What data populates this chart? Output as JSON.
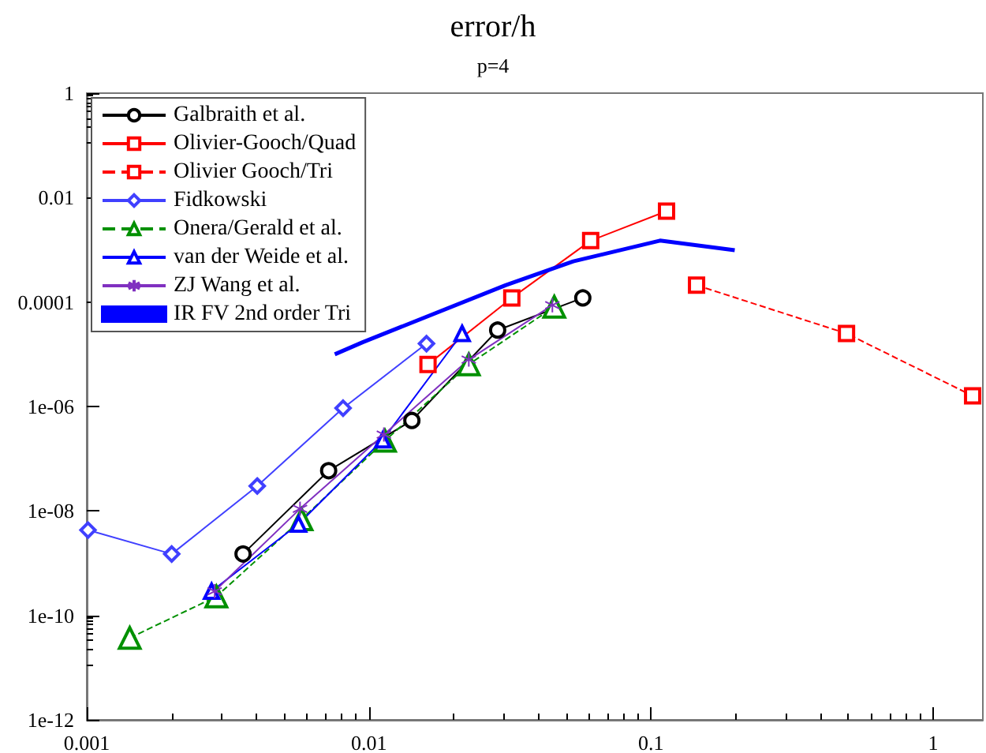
{
  "chart_data": {
    "type": "line",
    "title": "error/h",
    "subtitle": "p=4",
    "log": "xy",
    "xlim": [
      0.001,
      1.5
    ],
    "ylim": [
      1e-12,
      1
    ],
    "xticks": [
      0.001,
      0.01,
      0.1,
      1
    ],
    "yticks": [
      {
        "value": 1e-12,
        "label": "1e-12"
      },
      {
        "value": 1e-10,
        "label": "1e-10"
      },
      {
        "value": 1e-08,
        "label": "1e-08"
      },
      {
        "value": 1e-06,
        "label": "1e-06"
      },
      0.0001,
      0.01,
      1
    ],
    "grid": false,
    "legend": "top left",
    "series": [
      {
        "name": "Galbraith et al.",
        "color": "#000000",
        "marker": "circle",
        "line_style": "solid",
        "x": [
          0.00358,
          0.0072,
          0.0142,
          0.0286,
          0.0573
        ],
        "values": [
          1.5e-09,
          5.9e-08,
          5.4e-07,
          2.9e-05,
          0.00012
        ]
      },
      {
        "name": "Olivier-Gooch/Quad",
        "color": "#ff0000",
        "marker": "square",
        "line_style": "solid",
        "x": [
          0.0162,
          0.0321,
          0.0611,
          0.1135
        ],
        "values": [
          6.4e-06,
          0.00012,
          0.0015,
          0.0055
        ]
      },
      {
        "name": "Olivier Gooch/Tri",
        "color": "#ff0000",
        "marker": "square",
        "line_style": "dashed",
        "x": [
          0.145,
          0.493,
          1.38
        ],
        "values": [
          0.00021,
          2.5e-05,
          1.6e-06
        ]
      },
      {
        "name": "Fidkowski",
        "color": "#4040ff",
        "marker": "diamond",
        "line_style": "solid",
        "x": [
          0.00101,
          0.002,
          0.00402,
          0.0081,
          0.016
        ],
        "values": [
          4.3e-09,
          1.5e-09,
          3e-08,
          9.3e-07,
          1.6e-05
        ]
      },
      {
        "name": "Onera/Gerald et al.",
        "color": "#009000",
        "marker": "triangle",
        "line_style": "dashed",
        "x": [
          0.00142,
          0.00288,
          0.00577,
          0.0114,
          0.0226,
          0.0454
        ],
        "values": [
          3.7e-11,
          2.3e-10,
          6.9e-09,
          2.2e-07,
          6.4e-06,
          8.1e-05
        ]
      },
      {
        "name": "van der Weide et al.",
        "color": "#0000ff",
        "marker": "triangle",
        "line_style": "solid",
        "x": [
          0.00277,
          0.00563,
          0.0112,
          0.0214
        ],
        "values": [
          2.9e-10,
          5.6e-09,
          2.3e-07,
          2.5e-05
        ]
      },
      {
        "name": "ZJ Wang et al.",
        "color": "#8030c0",
        "marker": "cross",
        "line_style": "solid",
        "x": [
          0.00284,
          0.0057,
          0.0113,
          0.0226,
          0.0447
        ],
        "values": [
          2.9e-10,
          1.1e-08,
          2.9e-07,
          7.9e-06,
          8.7e-05
        ]
      },
      {
        "name": "IR FV 2nd order Tri",
        "color": "#0000ff",
        "marker": "none",
        "line_style": "solid",
        "x": [
          0.00757,
          0.0095,
          0.0305,
          0.053,
          0.1076,
          0.198
        ],
        "values": [
          1e-05,
          1.7e-05,
          0.00021,
          0.0006,
          0.0015,
          0.00098
        ]
      }
    ]
  }
}
